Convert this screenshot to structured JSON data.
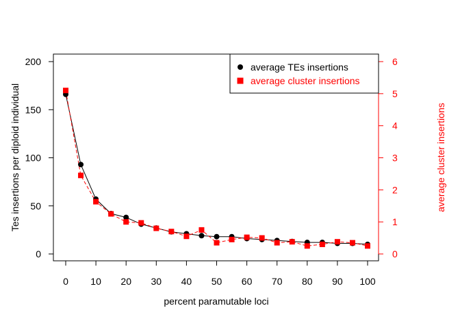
{
  "chart_data": {
    "type": "line",
    "xlabel": "percent paramutable loci",
    "ylabel_left": "Tes insertions per diploid individual",
    "ylabel_right": "average cluster insertions",
    "x": [
      0,
      5,
      10,
      15,
      20,
      25,
      30,
      35,
      40,
      45,
      50,
      55,
      60,
      65,
      70,
      75,
      80,
      85,
      90,
      95,
      100
    ],
    "xlim": [
      0,
      100
    ],
    "x_ticks": [
      "0",
      "10",
      "20",
      "30",
      "40",
      "50",
      "60",
      "70",
      "80",
      "90",
      "100"
    ],
    "ylim_left": [
      0,
      200
    ],
    "y_ticks_left": [
      "0",
      "50",
      "100",
      "150",
      "200"
    ],
    "ylim_right": [
      0,
      6
    ],
    "y_ticks_right": [
      "0",
      "1",
      "2",
      "3",
      "4",
      "5",
      "6"
    ],
    "grid": false,
    "legend_position": "top-right",
    "series": [
      {
        "name": "average TEs insertions",
        "axis": "left",
        "color": "#000000",
        "marker": "circle",
        "values": [
          166,
          93,
          57,
          42,
          38,
          31,
          27,
          23,
          21,
          19,
          18,
          18,
          16,
          15,
          14,
          13,
          12,
          12,
          11,
          11,
          10
        ]
      },
      {
        "name": "average cluster insertions",
        "axis": "right",
        "color": "#ff0000",
        "marker": "square",
        "values": [
          5.1,
          2.45,
          1.63,
          1.25,
          1.0,
          0.97,
          0.8,
          0.7,
          0.55,
          0.75,
          0.35,
          0.45,
          0.52,
          0.5,
          0.35,
          0.38,
          0.25,
          0.3,
          0.38,
          0.35,
          0.25
        ]
      }
    ]
  }
}
